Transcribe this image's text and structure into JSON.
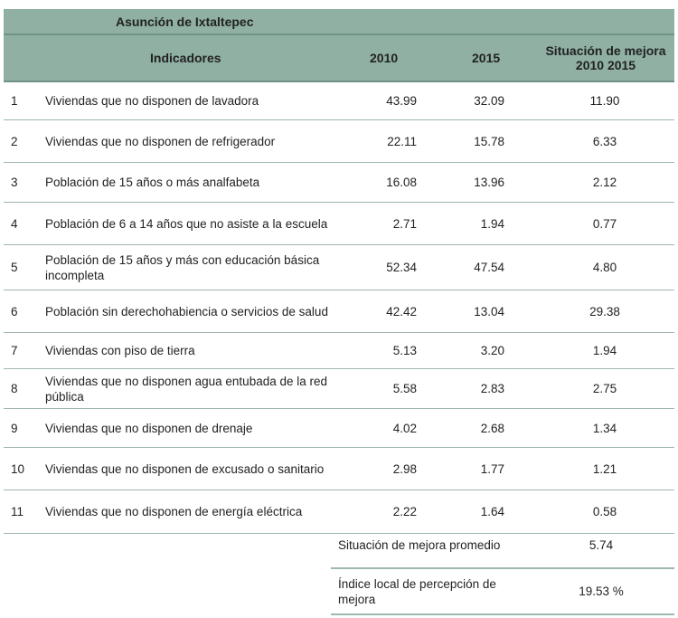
{
  "table": {
    "title": "Asunción de Ixtaltepec",
    "headers": [
      "Indicadores",
      "2010",
      "2015",
      "Situación de mejora 2010 2015"
    ],
    "rows": [
      {
        "n": "1",
        "label": "Viviendas que no disponen de lavadora",
        "v2010": "43.99",
        "v2015": "32.09",
        "mejora": "11.90"
      },
      {
        "n": "2",
        "label": "Viviendas que no disponen de refrigerador",
        "v2010": "22.11",
        "v2015": "15.78",
        "mejora": "6.33"
      },
      {
        "n": "3",
        "label": "Población de 15 años o más analfabeta",
        "v2010": "16.08",
        "v2015": "13.96",
        "mejora": "2.12"
      },
      {
        "n": "4",
        "label": "Población de 6 a 14 años que no asiste a la escuela",
        "v2010": "2.71",
        "v2015": "1.94",
        "mejora": "0.77"
      },
      {
        "n": "5",
        "label": "Población de 15 años y más con educación básica incompleta",
        "v2010": "52.34",
        "v2015": "47.54",
        "mejora": "4.80"
      },
      {
        "n": "6",
        "label": "Población sin derechohabiencia o servicios de salud",
        "v2010": "42.42",
        "v2015": "13.04",
        "mejora": "29.38"
      },
      {
        "n": "7",
        "label": "Viviendas con piso de tierra",
        "v2010": "5.13",
        "v2015": "3.20",
        "mejora": "1.94"
      },
      {
        "n": "8",
        "label": "Viviendas que no disponen agua entubada de la red pública",
        "v2010": "5.58",
        "v2015": "2.83",
        "mejora": "2.75"
      },
      {
        "n": "9",
        "label": "Viviendas que no disponen de drenaje",
        "v2010": "4.02",
        "v2015": "2.68",
        "mejora": "1.34"
      },
      {
        "n": "10",
        "label": "Viviendas que no disponen de excusado o sanitario",
        "v2010": "2.98",
        "v2015": "1.77",
        "mejora": "1.21"
      },
      {
        "n": "11",
        "label": "Viviendas que no disponen de energía eléctrica",
        "v2010": "2.22",
        "v2015": "1.64",
        "mejora": "0.58"
      }
    ],
    "summary": [
      {
        "label": "Situación de mejora promedio",
        "value": "5.74"
      },
      {
        "label": "Índice local de percepción de mejora",
        "value": "19.53 %"
      }
    ]
  },
  "colors": {
    "header_bg": "#8fb0a3",
    "rule": "#9db8ad"
  }
}
